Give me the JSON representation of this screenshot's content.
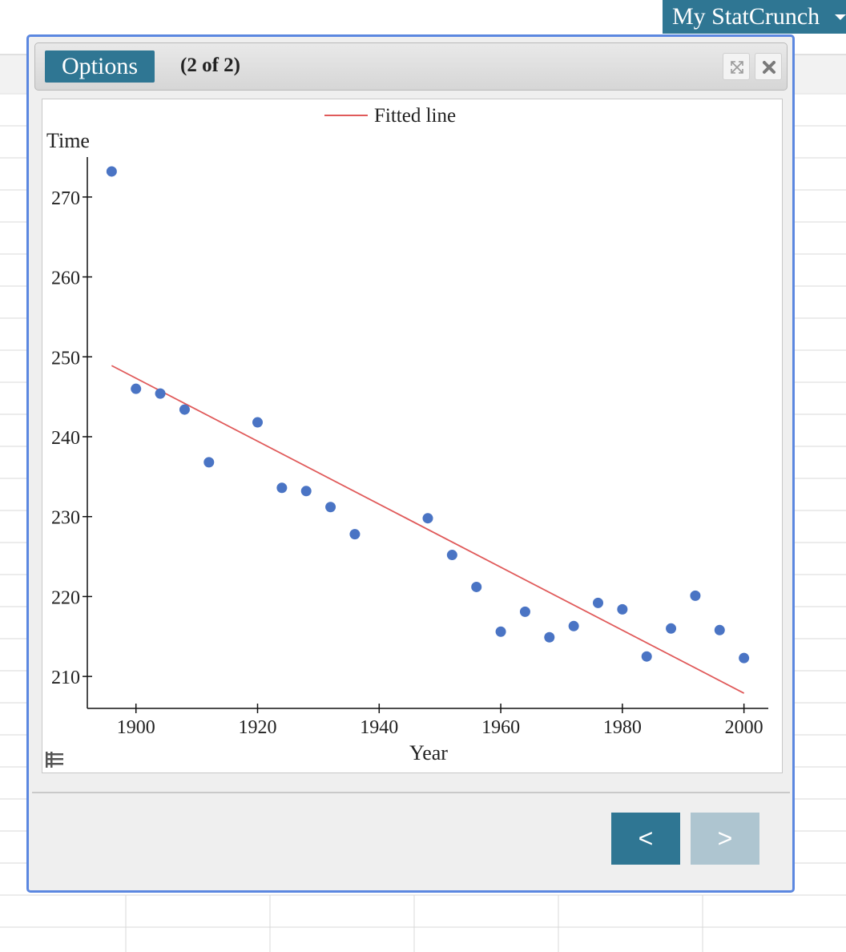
{
  "header": {
    "my_statcrunch": "My StatCrunch"
  },
  "dialog": {
    "options_label": "Options",
    "page_counter": "(2 of 2)",
    "prev_label": "<",
    "next_label": ">"
  },
  "chart_data": {
    "type": "scatter",
    "xlabel": "Year",
    "ylabel": "Time",
    "xlim": [
      1892,
      2004
    ],
    "ylim": [
      206,
      275
    ],
    "x_ticks": [
      1900,
      1920,
      1940,
      1960,
      1980,
      2000
    ],
    "y_ticks": [
      210,
      220,
      230,
      240,
      250,
      260,
      270
    ],
    "legend": {
      "label": "Fitted line",
      "placement": "top-center"
    },
    "points_color": "#4a74c4",
    "line_color": "#e05a5a",
    "points": [
      {
        "x": 1896,
        "y": 273.2
      },
      {
        "x": 1900,
        "y": 246
      },
      {
        "x": 1904,
        "y": 245.4
      },
      {
        "x": 1908,
        "y": 243.4
      },
      {
        "x": 1912,
        "y": 236.8
      },
      {
        "x": 1920,
        "y": 241.8
      },
      {
        "x": 1924,
        "y": 233.6
      },
      {
        "x": 1928,
        "y": 233.2
      },
      {
        "x": 1932,
        "y": 231.2
      },
      {
        "x": 1936,
        "y": 227.8
      },
      {
        "x": 1948,
        "y": 229.8
      },
      {
        "x": 1952,
        "y": 225.2
      },
      {
        "x": 1956,
        "y": 221.2
      },
      {
        "x": 1960,
        "y": 215.6
      },
      {
        "x": 1964,
        "y": 218.1
      },
      {
        "x": 1968,
        "y": 214.9
      },
      {
        "x": 1972,
        "y": 216.3
      },
      {
        "x": 1976,
        "y": 219.2
      },
      {
        "x": 1980,
        "y": 218.4
      },
      {
        "x": 1984,
        "y": 212.5
      },
      {
        "x": 1988,
        "y": 216
      },
      {
        "x": 1992,
        "y": 220.1
      },
      {
        "x": 1996,
        "y": 215.8
      },
      {
        "x": 2000,
        "y": 212.3
      }
    ],
    "fitted_line": [
      {
        "x": 1896,
        "y": 248.9
      },
      {
        "x": 2000,
        "y": 207.9
      }
    ]
  }
}
